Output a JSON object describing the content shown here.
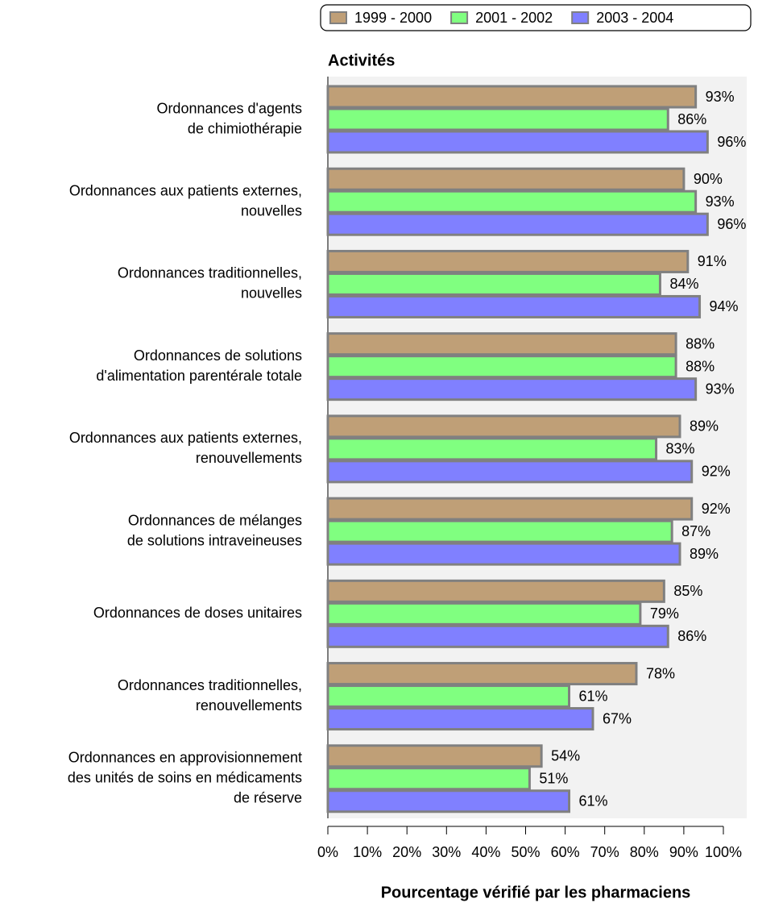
{
  "chart_data": {
    "type": "bar",
    "orientation": "horizontal",
    "title": "Activités",
    "x_label": "Pourcentage vérifié par les pharmaciens",
    "categories": [
      [
        "Ordonnances d'agents",
        "de chimiothérapie"
      ],
      [
        "Ordonnances aux patients externes,",
        "nouvelles"
      ],
      [
        "Ordonnances traditionnelles,",
        "nouvelles"
      ],
      [
        "Ordonnances de solutions",
        "d'alimentation parentérale totale"
      ],
      [
        "Ordonnances aux patients externes,",
        "renouvellements"
      ],
      [
        "Ordonnances de mélanges",
        "de solutions intraveineuses"
      ],
      [
        "Ordonnances de doses unitaires"
      ],
      [
        "Ordonnances traditionnelles,",
        "renouvellements"
      ],
      [
        "Ordonnances en approvisionnement",
        "des unités de soins en médicaments",
        "de réserve"
      ]
    ],
    "series": [
      {
        "name": "1999 - 2000",
        "color": "#bf9f77",
        "values": [
          93,
          90,
          91,
          88,
          89,
          92,
          85,
          78,
          54
        ],
        "value_labels": [
          "93%",
          "90%",
          "91%",
          "88%",
          "89%",
          "92%",
          "85%",
          "78%",
          "54%"
        ]
      },
      {
        "name": "2001 - 2002",
        "color": "#80ff80",
        "values": [
          86,
          93,
          84,
          88,
          83,
          87,
          79,
          61,
          51
        ],
        "value_labels": [
          "86%",
          "93%",
          "84%",
          "88%",
          "83%",
          "87%",
          "79%",
          "61%",
          "51%"
        ]
      },
      {
        "name": "2003 - 2004",
        "color": "#8080ff",
        "values": [
          96,
          96,
          94,
          93,
          92,
          89,
          86,
          67,
          61
        ],
        "value_labels": [
          "96%",
          "96%",
          "94%",
          "93%",
          "92%",
          "89%",
          "86%",
          "67%",
          "61%"
        ]
      }
    ],
    "xlim": [
      0,
      100
    ],
    "xticks": [
      {
        "value": 0,
        "label": "0%"
      },
      {
        "value": 10,
        "label": "10%"
      },
      {
        "value": 20,
        "label": "20%"
      },
      {
        "value": 30,
        "label": "30%"
      },
      {
        "value": 40,
        "label": "40%"
      },
      {
        "value": 50,
        "label": "50%"
      },
      {
        "value": 60,
        "label": "60%"
      },
      {
        "value": 70,
        "label": "70%"
      },
      {
        "value": 80,
        "label": "80%"
      },
      {
        "value": 90,
        "label": "90%"
      },
      {
        "value": 100,
        "label": "100%"
      }
    ],
    "legend": "top-right"
  }
}
